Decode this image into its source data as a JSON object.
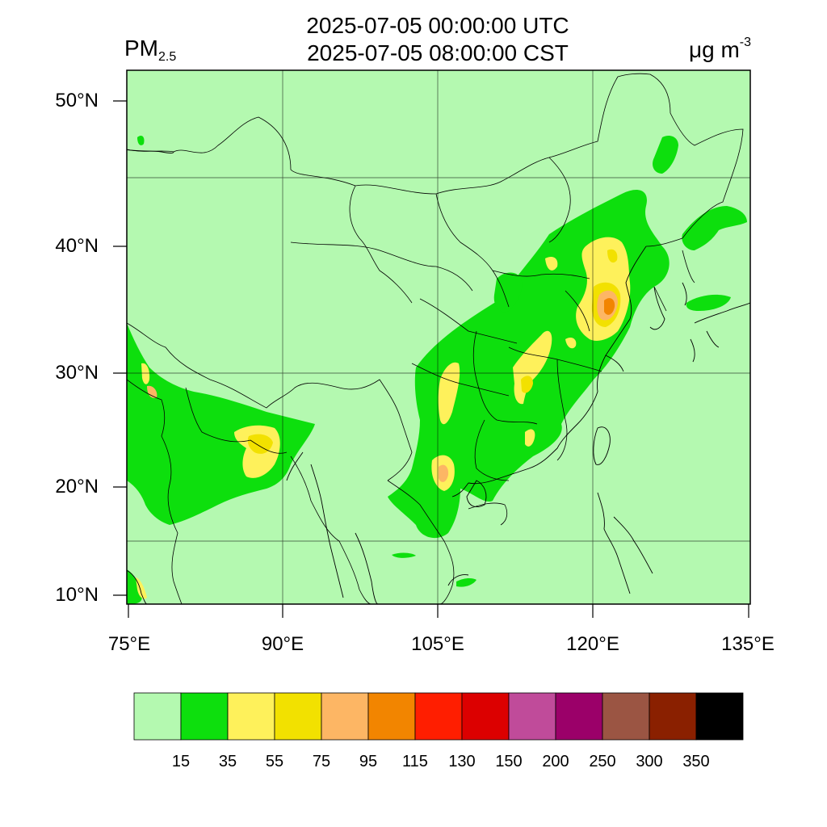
{
  "header": {
    "time_utc": "2025-07-05 00:00:00 UTC",
    "time_local": "2025-07-05 08:00:00 CST",
    "variable_base": "PM",
    "variable_sub": "2.5",
    "unit_base": "μg m",
    "unit_sup": "-3"
  },
  "map": {
    "region": "East Asia",
    "lon_range": [
      75,
      135
    ],
    "lat_range": [
      9,
      52
    ],
    "lat_ticks": [
      {
        "value": 50,
        "label": "50°N"
      },
      {
        "value": 40,
        "label": "40°N"
      },
      {
        "value": 30,
        "label": "30°N"
      },
      {
        "value": 20,
        "label": "20°N"
      },
      {
        "value": 10,
        "label": "10°N"
      }
    ],
    "lon_ticks": [
      {
        "value": 75,
        "label": "75°E"
      },
      {
        "value": 90,
        "label": "90°E"
      },
      {
        "value": 105,
        "label": "105°E"
      },
      {
        "value": 120,
        "label": "120°E"
      },
      {
        "value": 135,
        "label": "135°E"
      }
    ],
    "background_level_color": "#b4f9b0"
  },
  "colorbar": {
    "colors": [
      "#b4f9b0",
      "#0ddf0d",
      "#fef15b",
      "#f2e100",
      "#fdb664",
      "#f28500",
      "#ff1e00",
      "#dc0000",
      "#c04b9a",
      "#9b0069",
      "#9b5543",
      "#8a2000",
      "#000000"
    ],
    "labels": [
      "15",
      "35",
      "55",
      "75",
      "95",
      "115",
      "130",
      "150",
      "200",
      "250",
      "300",
      "350"
    ]
  }
}
